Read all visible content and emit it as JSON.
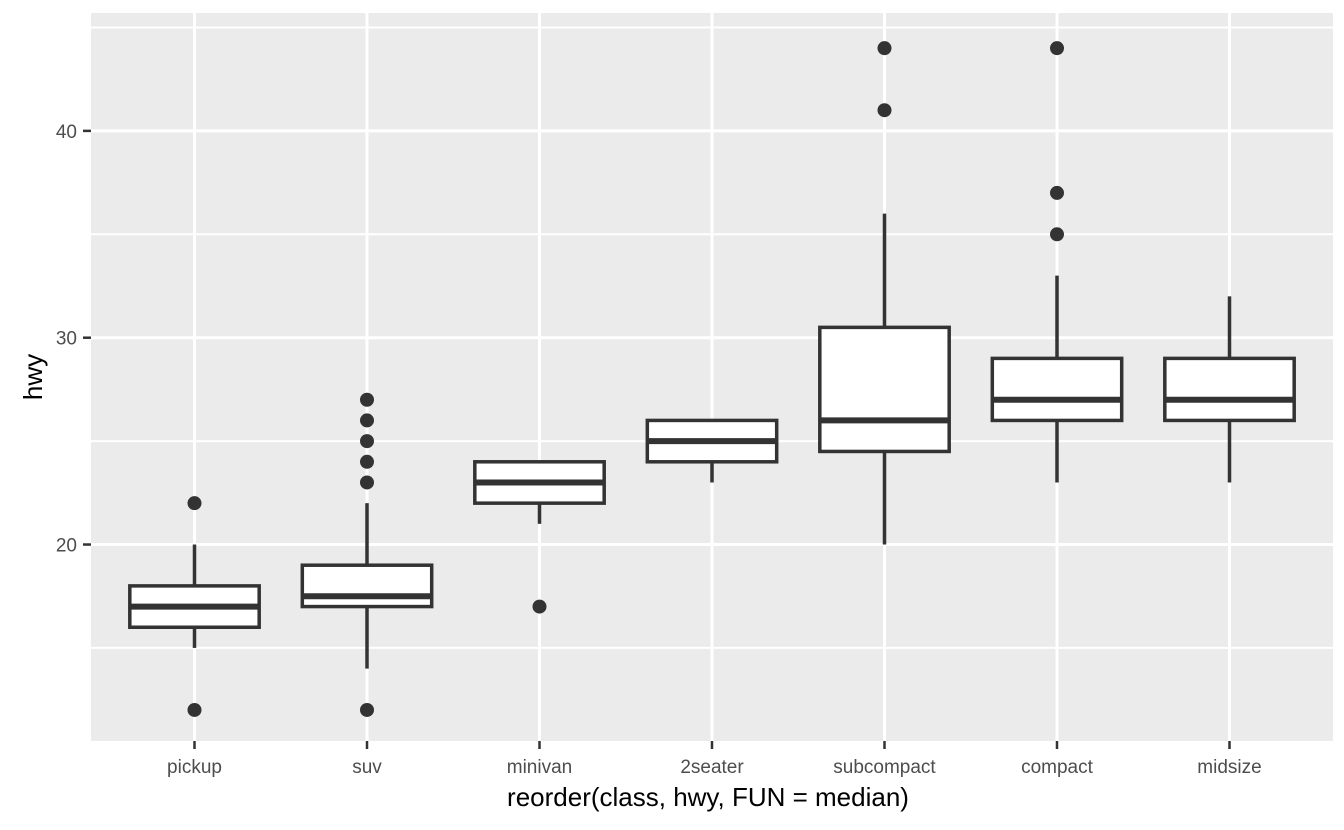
{
  "chart_data": {
    "type": "boxplot",
    "title": "",
    "xlabel": "reorder(class, hwy, FUN = median)",
    "ylabel": "hwy",
    "legend": "none",
    "grid": "major+minor",
    "categories": [
      "pickup",
      "suv",
      "minivan",
      "2seater",
      "subcompact",
      "compact",
      "midsize"
    ],
    "y_axis": {
      "ticks": [
        20,
        30,
        40
      ],
      "minor_ticks": [
        15,
        25,
        35,
        45
      ],
      "ylim": [
        10.5,
        45.7
      ]
    },
    "boxes": [
      {
        "category": "pickup",
        "whisker_low": 15,
        "q1": 16,
        "median": 17,
        "q3": 18,
        "whisker_high": 20,
        "outliers": [
          22,
          12
        ]
      },
      {
        "category": "suv",
        "whisker_low": 14,
        "q1": 17,
        "median": 17.5,
        "q3": 19,
        "whisker_high": 22,
        "outliers": [
          27,
          26,
          25,
          24,
          23,
          12
        ]
      },
      {
        "category": "minivan",
        "whisker_low": 21,
        "q1": 22,
        "median": 23,
        "q3": 24,
        "whisker_high": 24,
        "outliers": [
          17
        ]
      },
      {
        "category": "2seater",
        "whisker_low": 23,
        "q1": 24,
        "median": 25,
        "q3": 26,
        "whisker_high": 26,
        "outliers": []
      },
      {
        "category": "subcompact",
        "whisker_low": 20,
        "q1": 24.5,
        "median": 26,
        "q3": 30.5,
        "whisker_high": 36,
        "outliers": [
          41,
          44
        ]
      },
      {
        "category": "compact",
        "whisker_low": 23,
        "q1": 26,
        "median": 27,
        "q3": 29,
        "whisker_high": 33,
        "outliers": [
          35,
          37,
          44
        ]
      },
      {
        "category": "midsize",
        "whisker_low": 23,
        "q1": 26,
        "median": 27,
        "q3": 29,
        "whisker_high": 32,
        "outliers": []
      }
    ]
  },
  "colors": {
    "panel_background": "#EBEBEB",
    "gridline": "#FFFFFF",
    "box_stroke": "#333333",
    "box_fill": "#FFFFFF",
    "outlier_fill": "#333333",
    "tick_mark": "#333333",
    "tick_label": "#4D4D4D",
    "axis_title": "#000000",
    "plot_background": "#FFFFFF"
  }
}
